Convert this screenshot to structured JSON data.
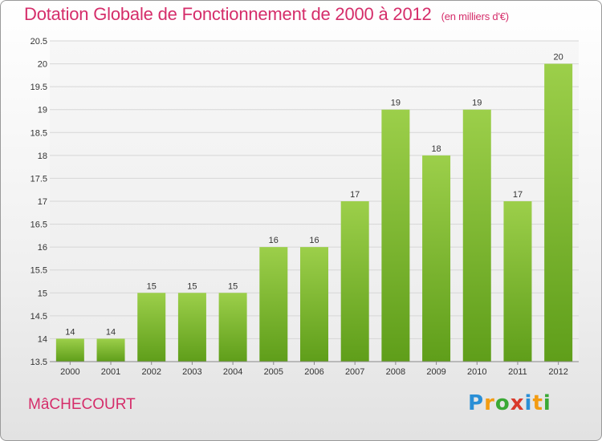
{
  "title": "Dotation Globale de Fonctionnement de 2000 à 2012",
  "units": "(en milliers d'€)",
  "commune": "MâCHECOURT",
  "logo": {
    "letters": [
      "P",
      "r",
      "o",
      "x",
      "i",
      "t",
      "i"
    ],
    "colors": [
      "#2a8fd6",
      "#f39c12",
      "#3aa935",
      "#d93a2b",
      "#2a8fd6",
      "#f39c12",
      "#3aa935"
    ]
  },
  "chart_data": {
    "type": "bar",
    "categories": [
      "2000",
      "2001",
      "2002",
      "2003",
      "2004",
      "2005",
      "2006",
      "2007",
      "2008",
      "2009",
      "2010",
      "2011",
      "2012"
    ],
    "values": [
      14,
      14,
      15,
      15,
      15,
      16,
      16,
      17,
      19,
      18,
      19,
      17,
      20
    ],
    "value_labels": [
      "14",
      "14",
      "15",
      "15",
      "15",
      "16",
      "16",
      "17",
      "19",
      "18",
      "19",
      "17",
      "20"
    ],
    "ylim": [
      13.5,
      20.5
    ],
    "yticks": [
      13.5,
      14,
      14.5,
      15,
      15.5,
      16,
      16.5,
      17,
      17.5,
      18,
      18.5,
      19,
      19.5,
      20,
      20.5
    ],
    "ytick_labels": [
      "13.5",
      "14",
      "14.5",
      "15",
      "15.5",
      "16",
      "16.5",
      "17",
      "17.5",
      "18",
      "18.5",
      "19",
      "19.5",
      "20",
      "20.5"
    ],
    "grid": true,
    "bar_color": "#7fbf36",
    "xlabel": "",
    "ylabel": ""
  }
}
